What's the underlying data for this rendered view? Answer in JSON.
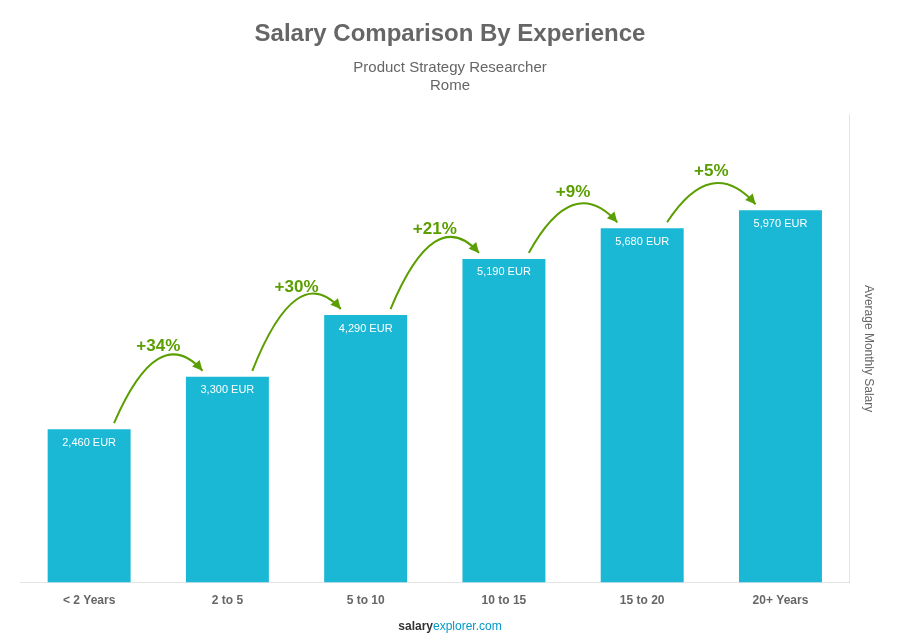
{
  "chart_data": {
    "type": "bar",
    "title": "Salary Comparison By Experience",
    "subtitle": "Product Strategy Researcher",
    "city": "Rome",
    "y_label": "Average Monthly Salary",
    "footer": [
      "salary",
      "explorer.com"
    ],
    "categories": [
      "< 2 Years",
      "2 to 5",
      "5 to 10",
      "10 to 15",
      "15 to 20",
      "20+ Years"
    ],
    "values": [
      2460,
      3300,
      4290,
      5190,
      5680,
      5970
    ],
    "value_labels": [
      "2,460 EUR",
      "3,300 EUR",
      "4,290 EUR",
      "5,190 EUR",
      "5,680 EUR",
      "5,970 EUR"
    ],
    "data_labels": true,
    "annotations": [
      {
        "category": "2 to 5",
        "text": "+34%"
      },
      {
        "category": "5 to 10",
        "text": "+30%"
      },
      {
        "category": "10 to 15",
        "text": "+21%"
      },
      {
        "category": "15 to 20",
        "text": "+9%"
      },
      {
        "category": "20+ Years",
        "text": "+5%"
      }
    ],
    "color": "#1ab8d5",
    "ylim": [
      0,
      7500
    ],
    "grid": false,
    "tick_labels": "x"
  }
}
